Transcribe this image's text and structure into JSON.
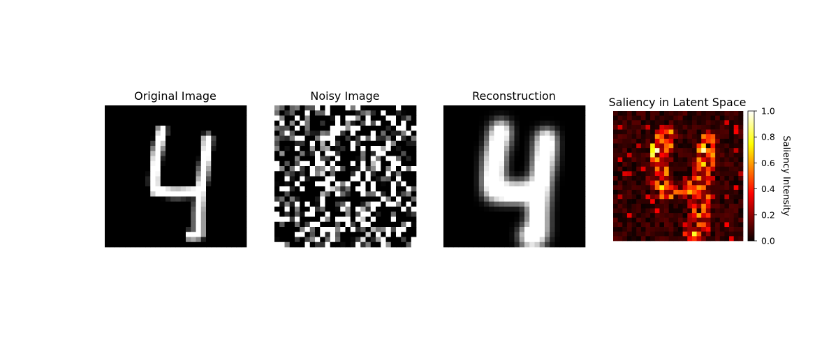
{
  "chart_data": [
    {
      "type": "heatmap",
      "title": "Original Image",
      "colormap": "gray",
      "grid": false,
      "axis": "off",
      "size": [
        28,
        28
      ],
      "content": "handwritten digit 4 (MNIST)"
    },
    {
      "type": "heatmap",
      "title": "Noisy Image",
      "colormap": "gray",
      "grid": false,
      "axis": "off",
      "size": [
        28,
        28
      ],
      "content": "digit 4 with heavy salt-and-pepper noise"
    },
    {
      "type": "heatmap",
      "title": "Reconstruction",
      "colormap": "gray",
      "grid": false,
      "axis": "off",
      "size": [
        28,
        28
      ],
      "content": "blurred reconstruction of digit 4"
    },
    {
      "type": "heatmap",
      "title": "Saliency in Latent Space",
      "colormap": "hot",
      "grid": false,
      "axis": "off",
      "size": [
        28,
        28
      ],
      "colorbar": {
        "label": "Saliency Intensity",
        "range": [
          0.0,
          1.0
        ],
        "ticks": [
          "0.0",
          "0.2",
          "0.4",
          "0.6",
          "0.8",
          "1.0"
        ]
      }
    }
  ]
}
